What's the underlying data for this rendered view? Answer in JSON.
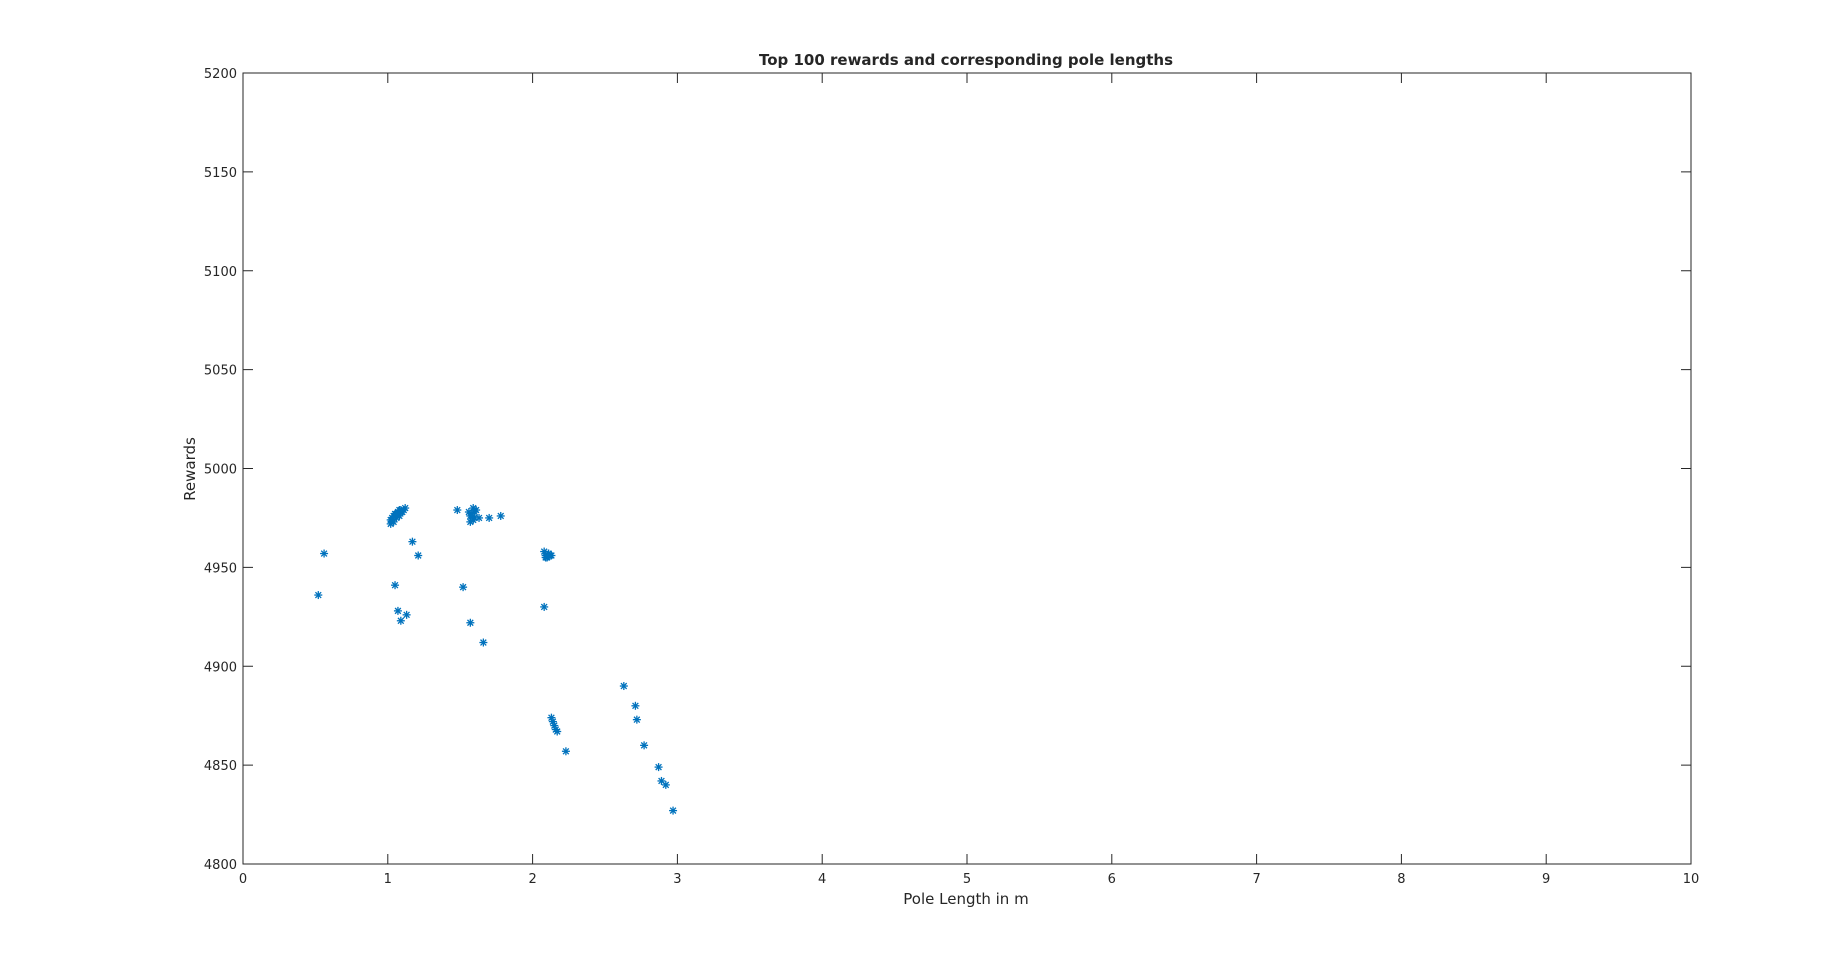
{
  "chart_data": {
    "type": "scatter",
    "title": "Top 100 rewards and corresponding pole lengths",
    "xlabel": "Pole Length in m",
    "ylabel": "Rewards",
    "xlim": [
      0,
      10
    ],
    "ylim": [
      4800,
      5200
    ],
    "xticks": [
      "0",
      "1",
      "2",
      "3",
      "4",
      "5",
      "6",
      "7",
      "8",
      "9",
      "10"
    ],
    "yticks": [
      "4800",
      "4850",
      "4900",
      "4950",
      "5000",
      "5050",
      "5100",
      "5150",
      "5200"
    ],
    "grid": false,
    "marker": "asterisk",
    "marker_color": "#0072bd",
    "axis_color": "#262626",
    "series": [
      {
        "x": [
          1.02,
          1.03,
          1.04,
          1.05,
          1.06,
          1.07,
          1.08,
          1.09,
          1.1,
          1.12,
          1.02,
          1.04,
          1.06,
          1.08,
          1.03,
          1.05,
          1.07,
          1.09,
          1.11,
          0.52,
          0.56,
          1.17,
          1.21,
          1.05,
          1.07,
          1.09,
          1.13,
          1.48,
          1.56,
          1.57,
          1.58,
          1.59,
          1.6,
          1.61,
          1.57,
          1.59,
          1.63,
          1.58,
          1.6,
          1.7,
          1.78,
          1.52,
          1.57,
          1.66,
          2.08,
          2.09,
          2.1,
          2.11,
          2.12,
          2.13,
          2.09,
          2.11,
          2.08,
          2.13,
          2.14,
          2.15,
          2.16,
          2.17,
          2.23,
          2.63,
          2.71,
          2.72,
          2.77,
          2.87,
          2.89,
          2.92,
          2.97
        ],
        "y": [
          4974,
          4975,
          4976,
          4977,
          4977,
          4978,
          4979,
          4979,
          4978,
          4980,
          4972,
          4973,
          4975,
          4976,
          4974,
          4976,
          4977,
          4978,
          4979,
          4936,
          4957,
          4963,
          4956,
          4941,
          4928,
          4923,
          4926,
          4979,
          4978,
          4976,
          4977,
          4980,
          4975,
          4979,
          4973,
          4974,
          4975,
          4976,
          4978,
          4975,
          4976,
          4940,
          4922,
          4912,
          4958,
          4956,
          4955,
          4957,
          4956,
          4956,
          4955,
          4957,
          4930,
          4874,
          4872,
          4870,
          4868,
          4867,
          4857,
          4890,
          4880,
          4873,
          4860,
          4849,
          4842,
          4840,
          4827
        ]
      }
    ]
  }
}
